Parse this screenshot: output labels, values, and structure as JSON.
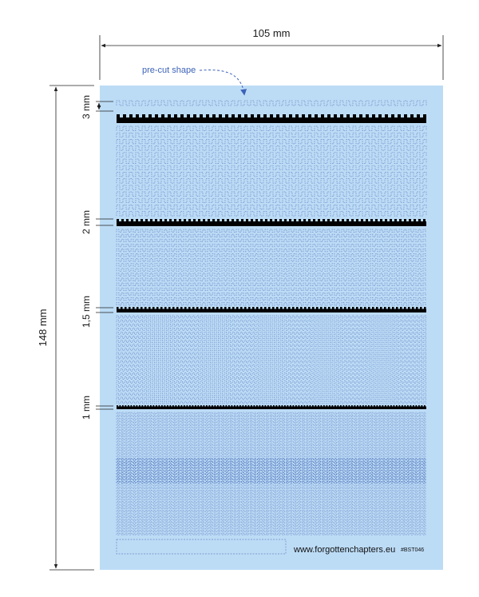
{
  "dimensions": {
    "width_label": "105 mm",
    "height_label": "148 mm"
  },
  "callout": {
    "label": "pre-cut shape"
  },
  "bands": [
    {
      "label": "3 mm"
    },
    {
      "label": "2 mm"
    },
    {
      "label": "1,5 mm"
    },
    {
      "label": "1 mm"
    }
  ],
  "footer": {
    "website": "www.forgottenchapters.eu",
    "code": "#BST046"
  },
  "colors": {
    "sheet": "#bcdcf6",
    "pattern": "#6b86c4",
    "pattern_dense": "#3f5fb0",
    "strip": "#000000",
    "callout": "#3d63b8",
    "dim_line": "#222222"
  }
}
